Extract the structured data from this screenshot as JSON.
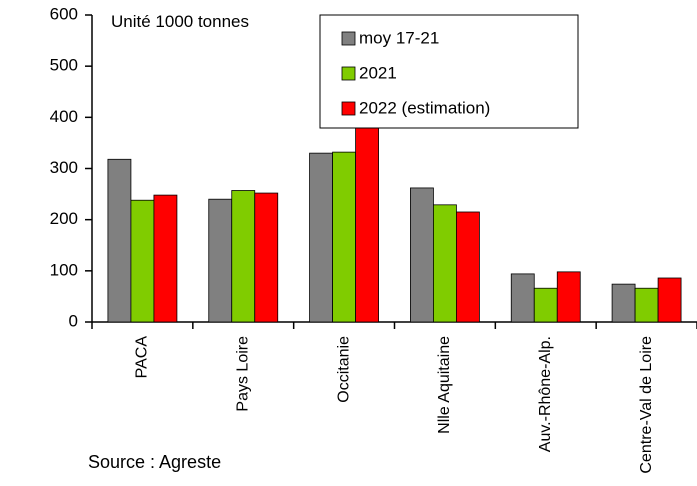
{
  "chart_data": {
    "type": "bar",
    "categories": [
      "PACA",
      "Pays Loire",
      "Occitanie",
      "Nlle Aquitaine",
      "Auv.-Rhône-Alp.",
      "Centre-Val de Loire"
    ],
    "series": [
      {
        "name": "moy 17-21",
        "color": "#808080",
        "values": [
          318,
          240,
          330,
          262,
          94,
          74
        ]
      },
      {
        "name": "2021",
        "color": "#80cc00",
        "values": [
          238,
          257,
          332,
          229,
          66,
          66
        ]
      },
      {
        "name": "2022 (estimation)",
        "color": "#ff0000",
        "values": [
          248,
          252,
          395,
          215,
          98,
          86
        ]
      }
    ],
    "ylim": [
      0,
      600
    ],
    "yticks": [
      0,
      100,
      200,
      300,
      400,
      500,
      600
    ],
    "unit_label": "Unité 1000 tonnes",
    "source": "Source : Agreste",
    "legend": "top-right"
  }
}
